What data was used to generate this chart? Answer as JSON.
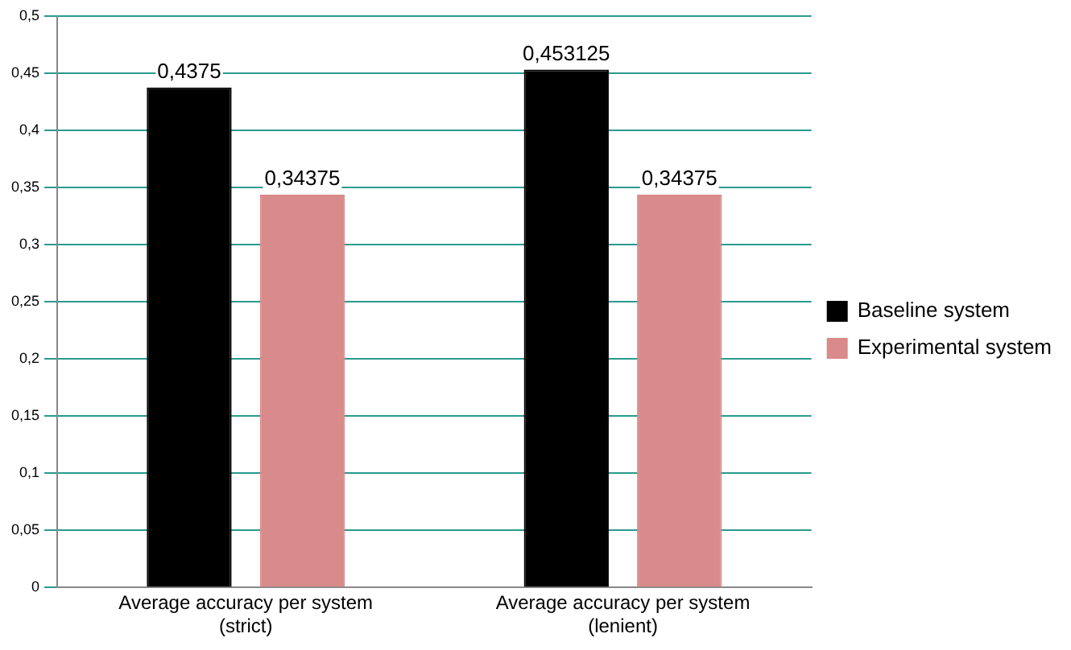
{
  "chart_data": {
    "type": "bar",
    "categories": [
      "Average accuracy per system (strict)",
      "Average accuracy per system (lenient)"
    ],
    "series": [
      {
        "name": "Baseline system",
        "color": "#000000",
        "values": [
          0.4375,
          0.453125
        ],
        "value_labels": [
          "0,4375",
          "0,453125"
        ]
      },
      {
        "name": "Experimental system",
        "color": "#d98a8a",
        "values": [
          0.34375,
          0.34375
        ],
        "value_labels": [
          "0,34375",
          "0,34375"
        ]
      }
    ],
    "ylim": [
      0,
      0.5
    ],
    "yticks": [
      {
        "value": 0,
        "label": "0"
      },
      {
        "value": 0.05,
        "label": "0,05"
      },
      {
        "value": 0.1,
        "label": "0,1"
      },
      {
        "value": 0.15,
        "label": "0,15"
      },
      {
        "value": 0.2,
        "label": "0,2"
      },
      {
        "value": 0.25,
        "label": "0,25"
      },
      {
        "value": 0.3,
        "label": "0,3"
      },
      {
        "value": 0.35,
        "label": "0,35"
      },
      {
        "value": 0.4,
        "label": "0,4"
      },
      {
        "value": 0.45,
        "label": "0,45"
      },
      {
        "value": 0.5,
        "label": "0,5"
      }
    ],
    "grid": "y",
    "legend": "right"
  }
}
